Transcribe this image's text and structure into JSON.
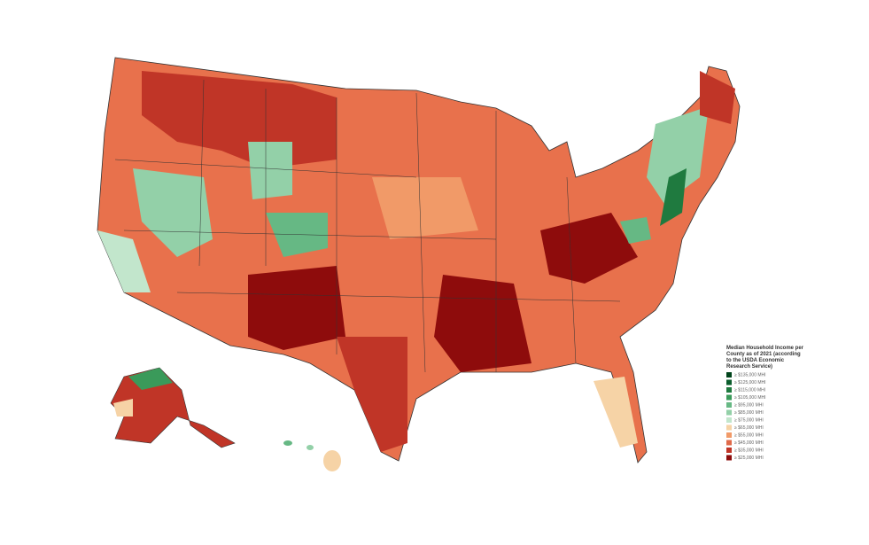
{
  "legend": {
    "title": "Median Household Income per County as of 2021 (according to the USDA Economic Research Service)",
    "items": [
      {
        "label": "≥ $135,000 MHI",
        "color": "#00441b"
      },
      {
        "label": "≥ $125,000 MHI",
        "color": "#0b5d2c"
      },
      {
        "label": "≥ $115,000 MHI",
        "color": "#1f7a3f"
      },
      {
        "label": "≥ $105,000 MHI",
        "color": "#3a9a5a"
      },
      {
        "label": "≥ $95,000 MHI",
        "color": "#66b884"
      },
      {
        "label": "≥ $85,000 MHI",
        "color": "#93d0a8"
      },
      {
        "label": "≥ $75,000 MHI",
        "color": "#c2e6cc"
      },
      {
        "label": "≥ $65,000 MHI",
        "color": "#f6d3a6"
      },
      {
        "label": "≥ $55,000 MHI",
        "color": "#f19a68"
      },
      {
        "label": "≥ $45,000 MHI",
        "color": "#e06a4a"
      },
      {
        "label": "≥ $35,000 MHI",
        "color": "#c03527"
      },
      {
        "label": "≥ $25,000 MHI",
        "color": "#8e0c0c"
      }
    ]
  }
}
